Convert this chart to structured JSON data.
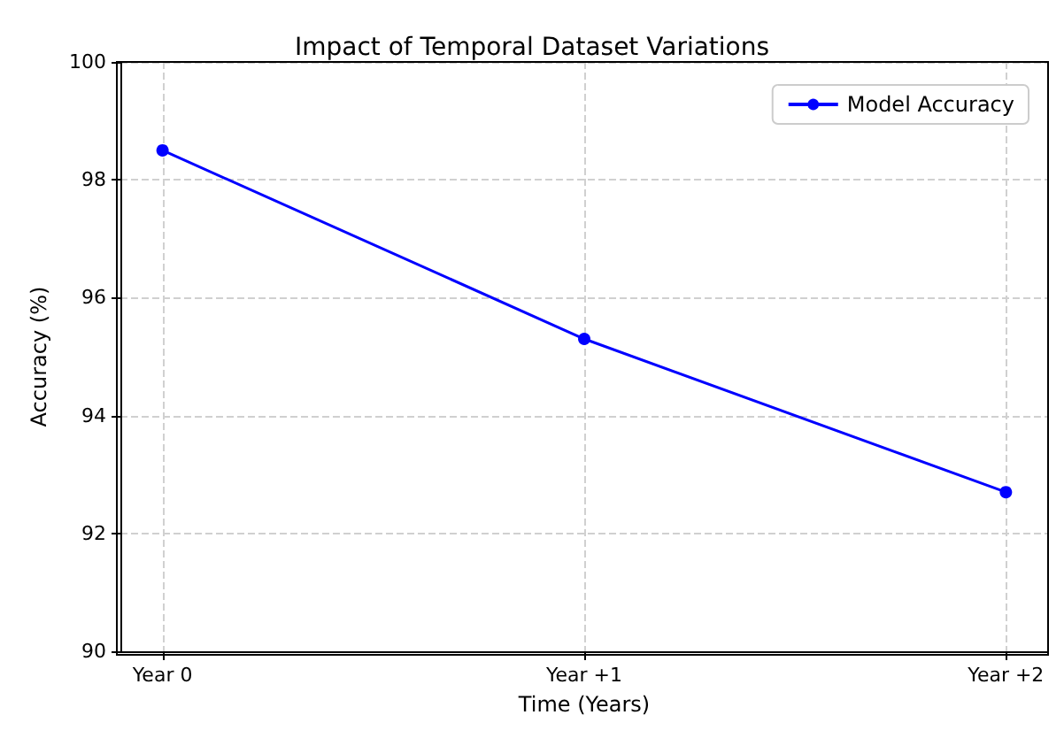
{
  "chart_data": {
    "type": "line",
    "title": "Impact of Temporal Dataset Variations",
    "xlabel": "Time (Years)",
    "ylabel": "Accuracy (%)",
    "categories": [
      "Year 0",
      "Year +1",
      "Year +2"
    ],
    "series": [
      {
        "name": "Model Accuracy",
        "color": "#0000ff",
        "values": [
          98.5,
          95.3,
          92.7
        ]
      }
    ],
    "ylim": [
      90,
      100
    ],
    "yticks": [
      90,
      92,
      94,
      96,
      98,
      100
    ],
    "grid": true,
    "legend": "top right",
    "marker": "circle",
    "line_style": "solid"
  }
}
